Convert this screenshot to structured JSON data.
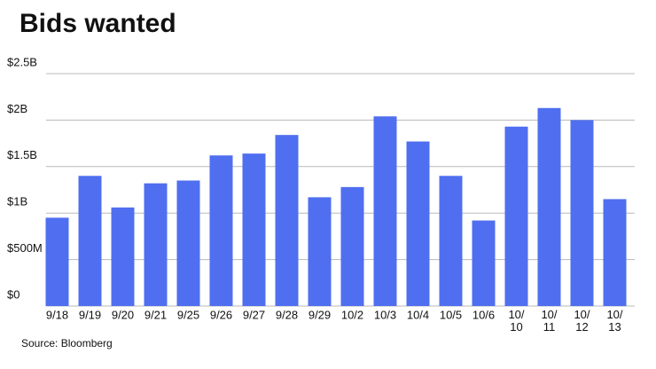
{
  "chart_data": {
    "type": "bar",
    "title": "Bids wanted",
    "source": "Source: Bloomberg",
    "categories": [
      "9/18",
      "9/19",
      "9/20",
      "9/21",
      "9/25",
      "9/26",
      "9/27",
      "9/28",
      "9/29",
      "10/2",
      "10/3",
      "10/4",
      "10/5",
      "10/6",
      "10/\n10",
      "10/\n11",
      "10/\n12",
      "10/\n13"
    ],
    "values": [
      950000000,
      1400000000,
      1060000000,
      1320000000,
      1350000000,
      1620000000,
      1640000000,
      1840000000,
      1170000000,
      1280000000,
      2040000000,
      1770000000,
      1400000000,
      920000000,
      1930000000,
      2130000000,
      2000000000,
      1150000000
    ],
    "color": "#4f6ff0",
    "ylim": [
      0,
      2500000000
    ],
    "yticks": [
      {
        "value": 0,
        "label": "$0"
      },
      {
        "value": 500000000,
        "label": "$500M"
      },
      {
        "value": 1000000000,
        "label": "$1B"
      },
      {
        "value": 1500000000,
        "label": "$1.5B"
      },
      {
        "value": 2000000000,
        "label": "$2B"
      },
      {
        "value": 2500000000,
        "label": "$2.5B"
      }
    ],
    "grid": true
  }
}
